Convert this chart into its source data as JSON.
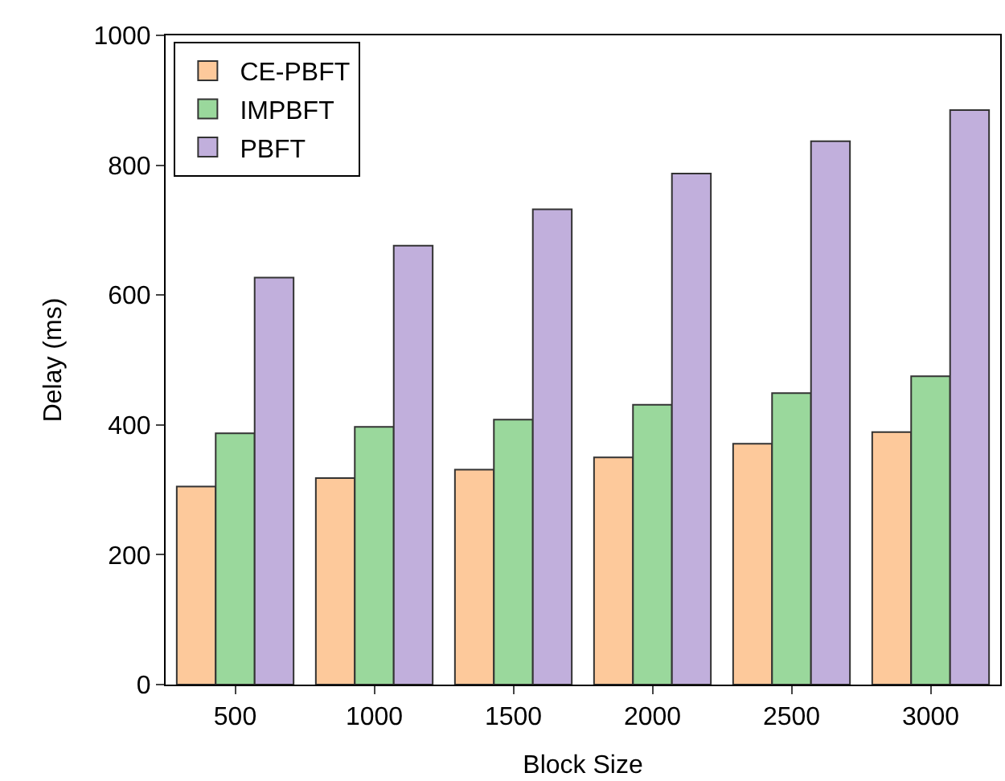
{
  "chart_data": {
    "type": "bar",
    "xlabel": "Block Size",
    "ylabel": "Delay (ms)",
    "categories": [
      "500",
      "1000",
      "1500",
      "2000",
      "2500",
      "3000"
    ],
    "series": [
      {
        "name": "CE-PBFT",
        "color": "#fdc99b",
        "values": [
          305,
          318,
          331,
          350,
          371,
          389
        ]
      },
      {
        "name": "IMPBFT",
        "color": "#9ad89c",
        "values": [
          387,
          397,
          408,
          431,
          449,
          475
        ]
      },
      {
        "name": "PBFT",
        "color": "#c1afdc",
        "values": [
          627,
          676,
          732,
          787,
          837,
          885
        ]
      }
    ],
    "ylim": [
      0,
      1000
    ],
    "yticks": [
      0,
      200,
      400,
      600,
      800,
      1000
    ],
    "legend": "top left"
  }
}
